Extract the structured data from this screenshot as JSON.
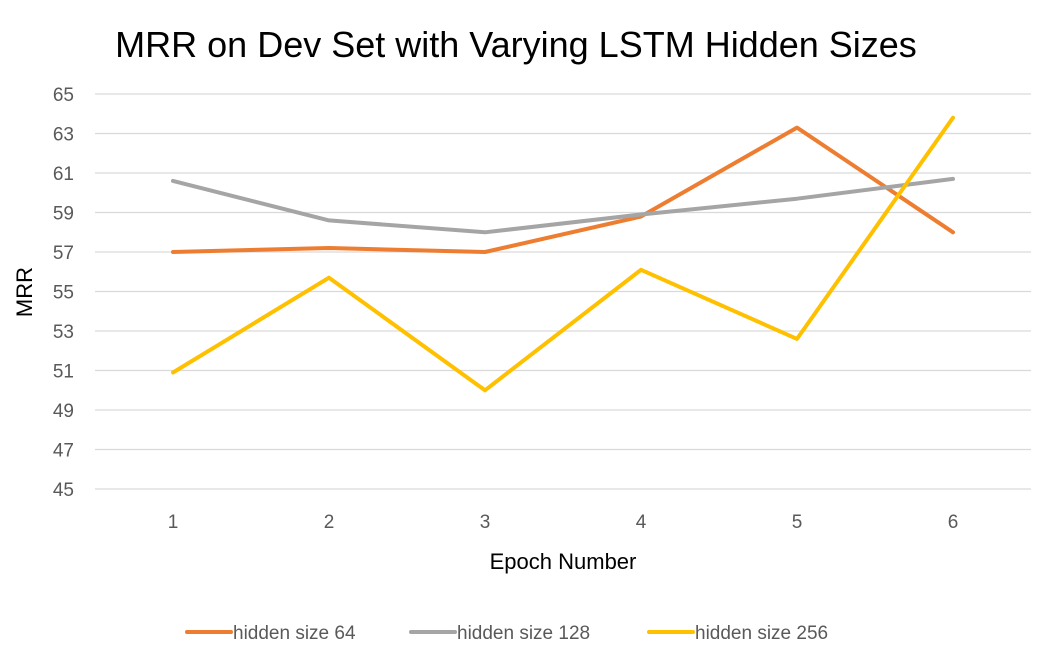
{
  "chart_data": {
    "type": "line",
    "title": "MRR on Dev Set with Varying LSTM Hidden Sizes",
    "xlabel": "Epoch Number",
    "ylabel": "MRR",
    "categories": [
      "1",
      "2",
      "3",
      "4",
      "5",
      "6"
    ],
    "ylim": [
      45,
      65
    ],
    "yticks": [
      45,
      47,
      49,
      51,
      53,
      55,
      57,
      59,
      61,
      63,
      65
    ],
    "grid": true,
    "legend_position": "bottom",
    "series": [
      {
        "name": "hidden size 64",
        "color": "#ED7D31",
        "values": [
          57.0,
          57.2,
          57.0,
          58.8,
          63.3,
          58.0
        ]
      },
      {
        "name": "hidden size 128",
        "color": "#A5A5A5",
        "values": [
          60.6,
          58.6,
          58.0,
          58.9,
          59.7,
          60.7
        ]
      },
      {
        "name": "hidden size 256",
        "color": "#FFC000",
        "values": [
          50.9,
          55.7,
          50.0,
          56.1,
          52.6,
          63.8
        ]
      }
    ]
  }
}
